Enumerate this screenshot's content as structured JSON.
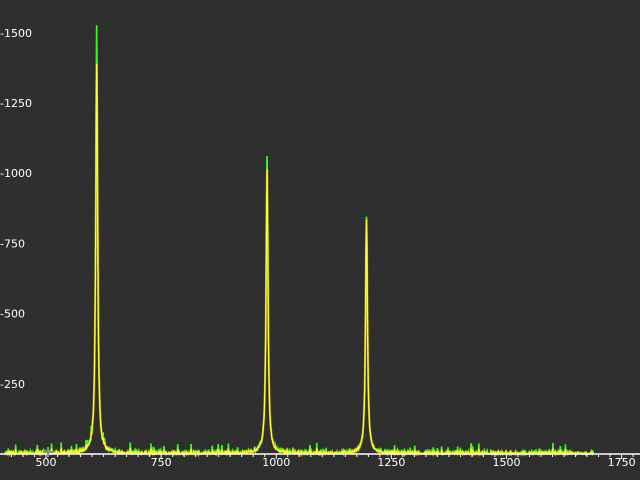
{
  "colors": {
    "background": "#2f2f2f",
    "axis": "#ffffff",
    "series_measured": "#33ff1a",
    "series_fit": "#ffff33",
    "series_fit_edge": "#ff9900"
  },
  "chart_data": {
    "type": "line",
    "xlim": [
      400,
      1790
    ],
    "ylim": [
      0,
      1560
    ],
    "x_ticks": [
      500,
      750,
      1000,
      1250,
      1500,
      1750
    ],
    "y_ticks": [
      250,
      500,
      750,
      1000,
      1250,
      1500
    ],
    "x_tick_labels": [
      "500",
      "750",
      "1000",
      "1250",
      "1500",
      "1750"
    ],
    "y_tick_labels": [
      "-250",
      "-500",
      "-750",
      "-1000",
      "-1250",
      "-1500"
    ],
    "grid": false,
    "legend": "none",
    "x_range_of_data": [
      410,
      1690
    ],
    "baseline_noise_max": 40,
    "peaks": [
      {
        "x": 610,
        "measured": 1520,
        "fit": 1390,
        "width": 2.5
      },
      {
        "x": 980,
        "measured": 1060,
        "fit": 1015,
        "width": 2.5
      },
      {
        "x": 1196,
        "measured": 845,
        "fit": 835,
        "width": 2.5
      }
    ]
  }
}
